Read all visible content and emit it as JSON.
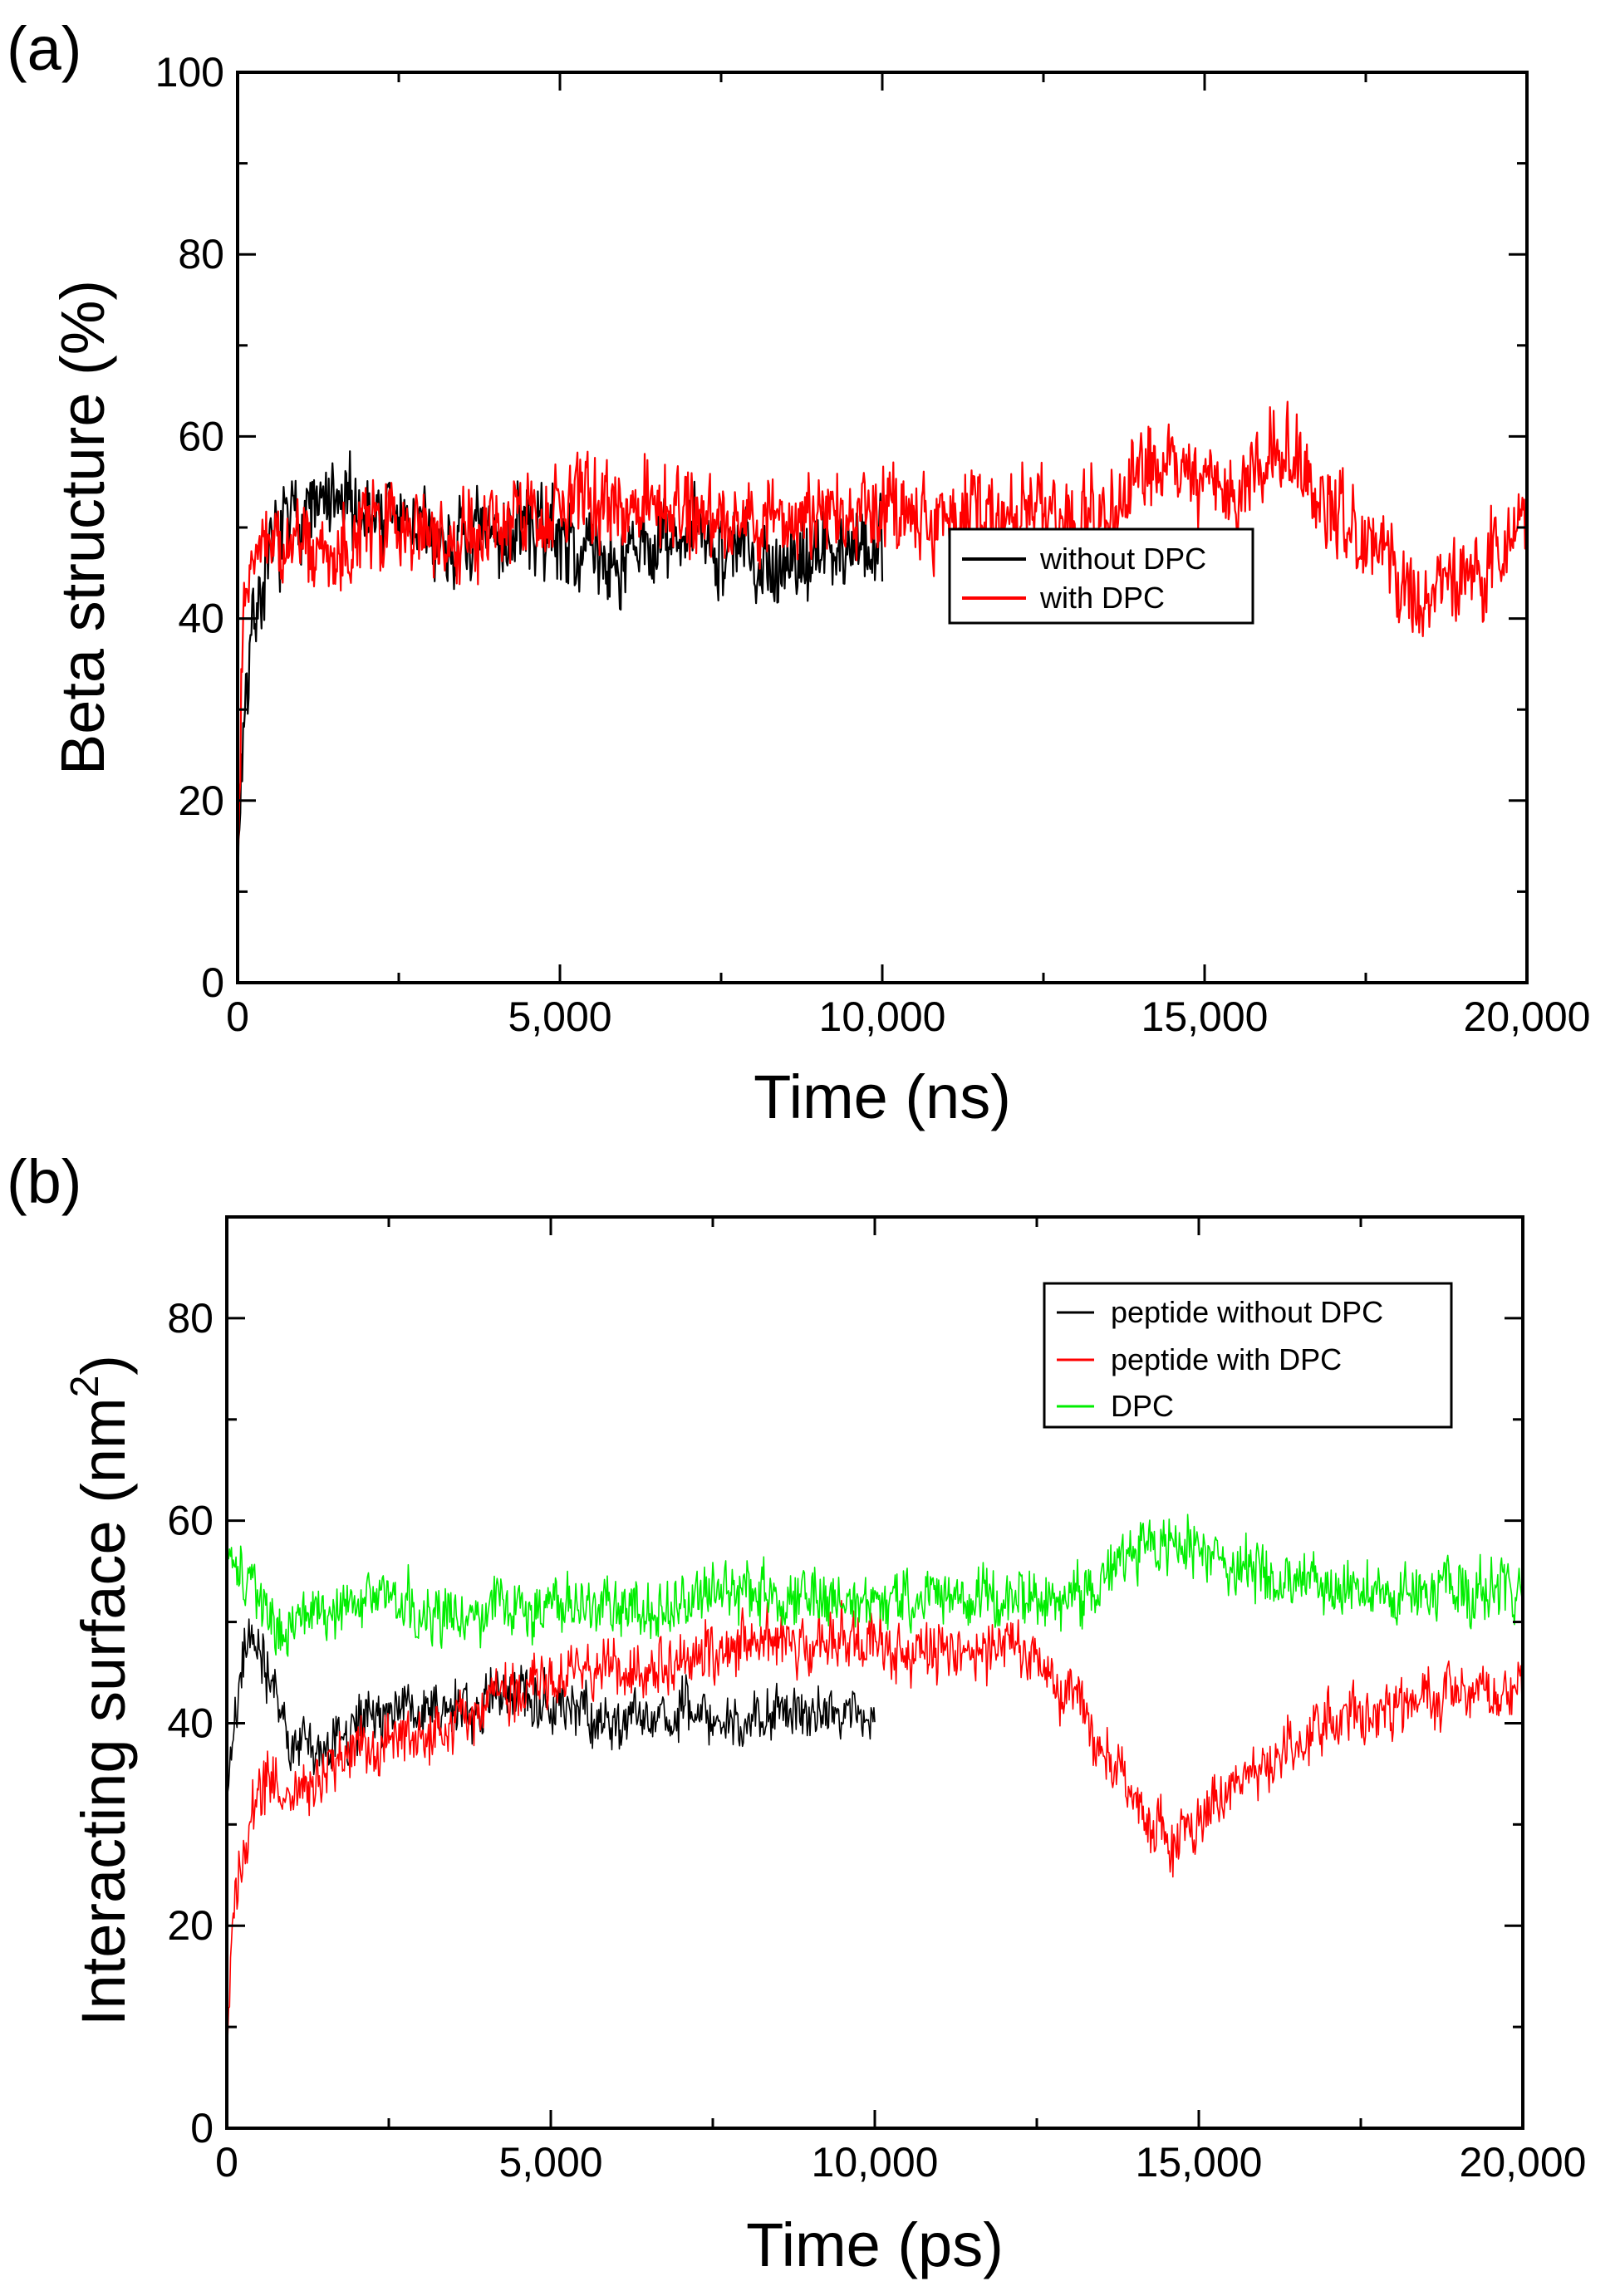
{
  "chart_data": [
    {
      "panel_label": "(a)",
      "type": "line",
      "title": "",
      "xlabel": "Time (ns)",
      "ylabel": "Beta structure (%)",
      "xlim": [
        0,
        20000
      ],
      "ylim": [
        0,
        100
      ],
      "xticks": [
        0,
        5000,
        10000,
        15000,
        20000
      ],
      "xtick_labels": [
        "0",
        "5,000",
        "10,000",
        "15,000",
        "20,000"
      ],
      "yticks": [
        0,
        20,
        40,
        60,
        80,
        100
      ],
      "ytick_labels": [
        "0",
        "20",
        "40",
        "60",
        "80",
        "100"
      ],
      "grid": false,
      "legend_position": "center-right",
      "series": [
        {
          "name": "without DPC",
          "color": "#000000",
          "x": [
            0,
            50,
            100,
            200,
            300,
            500,
            750,
            1000,
            1500,
            2000,
            2500,
            3000,
            3500,
            4000,
            4500,
            5000,
            5500,
            6000,
            6500,
            7000,
            7500,
            8000,
            8500,
            9000,
            9500,
            10000
          ],
          "y": [
            10,
            22,
            30,
            38,
            42,
            46,
            50,
            52,
            52,
            52,
            51,
            49,
            48,
            49,
            50,
            49,
            47,
            46,
            48,
            49,
            48,
            47,
            46,
            47,
            48,
            49
          ],
          "noise": 5
        },
        {
          "name": "with DPC",
          "color": "#ff0000",
          "x": [
            0,
            50,
            100,
            200,
            300,
            500,
            750,
            1000,
            1500,
            2000,
            2500,
            3000,
            3500,
            4000,
            4500,
            5000,
            5500,
            6000,
            6500,
            7000,
            7500,
            8000,
            8500,
            9000,
            9500,
            10000,
            10500,
            11000,
            11500,
            12000,
            12500,
            13000,
            13500,
            14000,
            14500,
            15000,
            15500,
            16000,
            16500,
            17000,
            17500,
            18000,
            18500,
            19000,
            19500,
            20000
          ],
          "y": [
            10,
            30,
            42,
            47,
            48,
            48,
            48,
            48,
            48,
            50,
            51,
            50,
            49,
            50,
            51,
            52,
            53,
            53,
            53,
            52,
            51,
            51,
            51,
            51,
            51,
            52,
            52,
            51,
            51,
            52,
            52,
            51,
            52,
            55,
            57,
            55,
            54,
            58,
            57,
            52,
            48,
            45,
            43,
            44,
            47,
            52
          ],
          "noise": 5
        }
      ]
    },
    {
      "panel_label": "(b)",
      "type": "line",
      "title": "",
      "xlabel": "Time (ps)",
      "ylabel": "Interacting surface (nm",
      "ylabel_sup": "2",
      "ylabel_end": ")",
      "xlim": [
        0,
        20000
      ],
      "ylim": [
        0,
        90
      ],
      "xticks": [
        0,
        5000,
        10000,
        15000,
        20000
      ],
      "xtick_labels": [
        "0",
        "5,000",
        "10,000",
        "15,000",
        "20,000"
      ],
      "yticks": [
        0,
        20,
        40,
        60,
        80
      ],
      "ytick_labels": [
        "0",
        "20",
        "40",
        "60",
        "80"
      ],
      "grid": false,
      "legend_position": "top-right",
      "series": [
        {
          "name": "peptide without DPC",
          "color": "#000000",
          "x": [
            0,
            50,
            100,
            200,
            300,
            400,
            500,
            750,
            1000,
            1500,
            2000,
            2500,
            3000,
            3500,
            4000,
            4500,
            5000,
            5500,
            6000,
            6500,
            7000,
            7500,
            8000,
            8500,
            9000,
            9500,
            10000
          ],
          "y": [
            32,
            35,
            40,
            44,
            48,
            49,
            48,
            42,
            38,
            37,
            40,
            41,
            41,
            41,
            42,
            43,
            42,
            41,
            40,
            40,
            41,
            41,
            40,
            41,
            41,
            41,
            41
          ],
          "noise": 3
        },
        {
          "name": "peptide with DPC",
          "color": "#ff0000",
          "x": [
            0,
            50,
            100,
            200,
            300,
            500,
            750,
            1000,
            1500,
            2000,
            2500,
            3000,
            3500,
            4000,
            4500,
            5000,
            5500,
            6000,
            6500,
            7000,
            7500,
            8000,
            8500,
            9000,
            9500,
            10000,
            10500,
            11000,
            11500,
            12000,
            12500,
            13000,
            13500,
            14000,
            14500,
            15000,
            15500,
            16000,
            16500,
            17000,
            17500,
            18000,
            18500,
            19000,
            19500,
            20000
          ],
          "y": [
            5,
            15,
            22,
            27,
            30,
            33,
            34,
            33,
            35,
            37,
            38,
            39,
            40,
            42,
            43,
            44,
            45,
            46,
            45,
            46,
            47,
            48,
            48,
            47,
            48,
            48,
            47,
            47,
            47,
            48,
            46,
            43,
            38,
            32,
            28,
            30,
            34,
            36,
            38,
            40,
            41,
            41,
            42,
            43,
            43,
            43
          ],
          "noise": 3
        },
        {
          "name": "DPC",
          "color": "#00ee00",
          "x": [
            0,
            50,
            100,
            200,
            300,
            500,
            750,
            1000,
            1500,
            2000,
            2500,
            3000,
            3500,
            4000,
            4500,
            5000,
            5500,
            6000,
            6500,
            7000,
            7500,
            8000,
            8500,
            9000,
            9500,
            10000,
            10500,
            11000,
            11500,
            12000,
            12500,
            13000,
            13500,
            14000,
            14500,
            15000,
            15500,
            16000,
            16500,
            17000,
            17500,
            18000,
            18500,
            19000,
            19500,
            20000
          ],
          "y": [
            58,
            57,
            56,
            55,
            54,
            52,
            50,
            50,
            51,
            52,
            53,
            51,
            51,
            51,
            52,
            52,
            52,
            51,
            51,
            52,
            53,
            53,
            52,
            52,
            52,
            52,
            52,
            53,
            52,
            52,
            52,
            53,
            54,
            57,
            58,
            57,
            56,
            55,
            54,
            53,
            53,
            53,
            53,
            53,
            53,
            53
          ],
          "noise": 3
        }
      ]
    }
  ]
}
